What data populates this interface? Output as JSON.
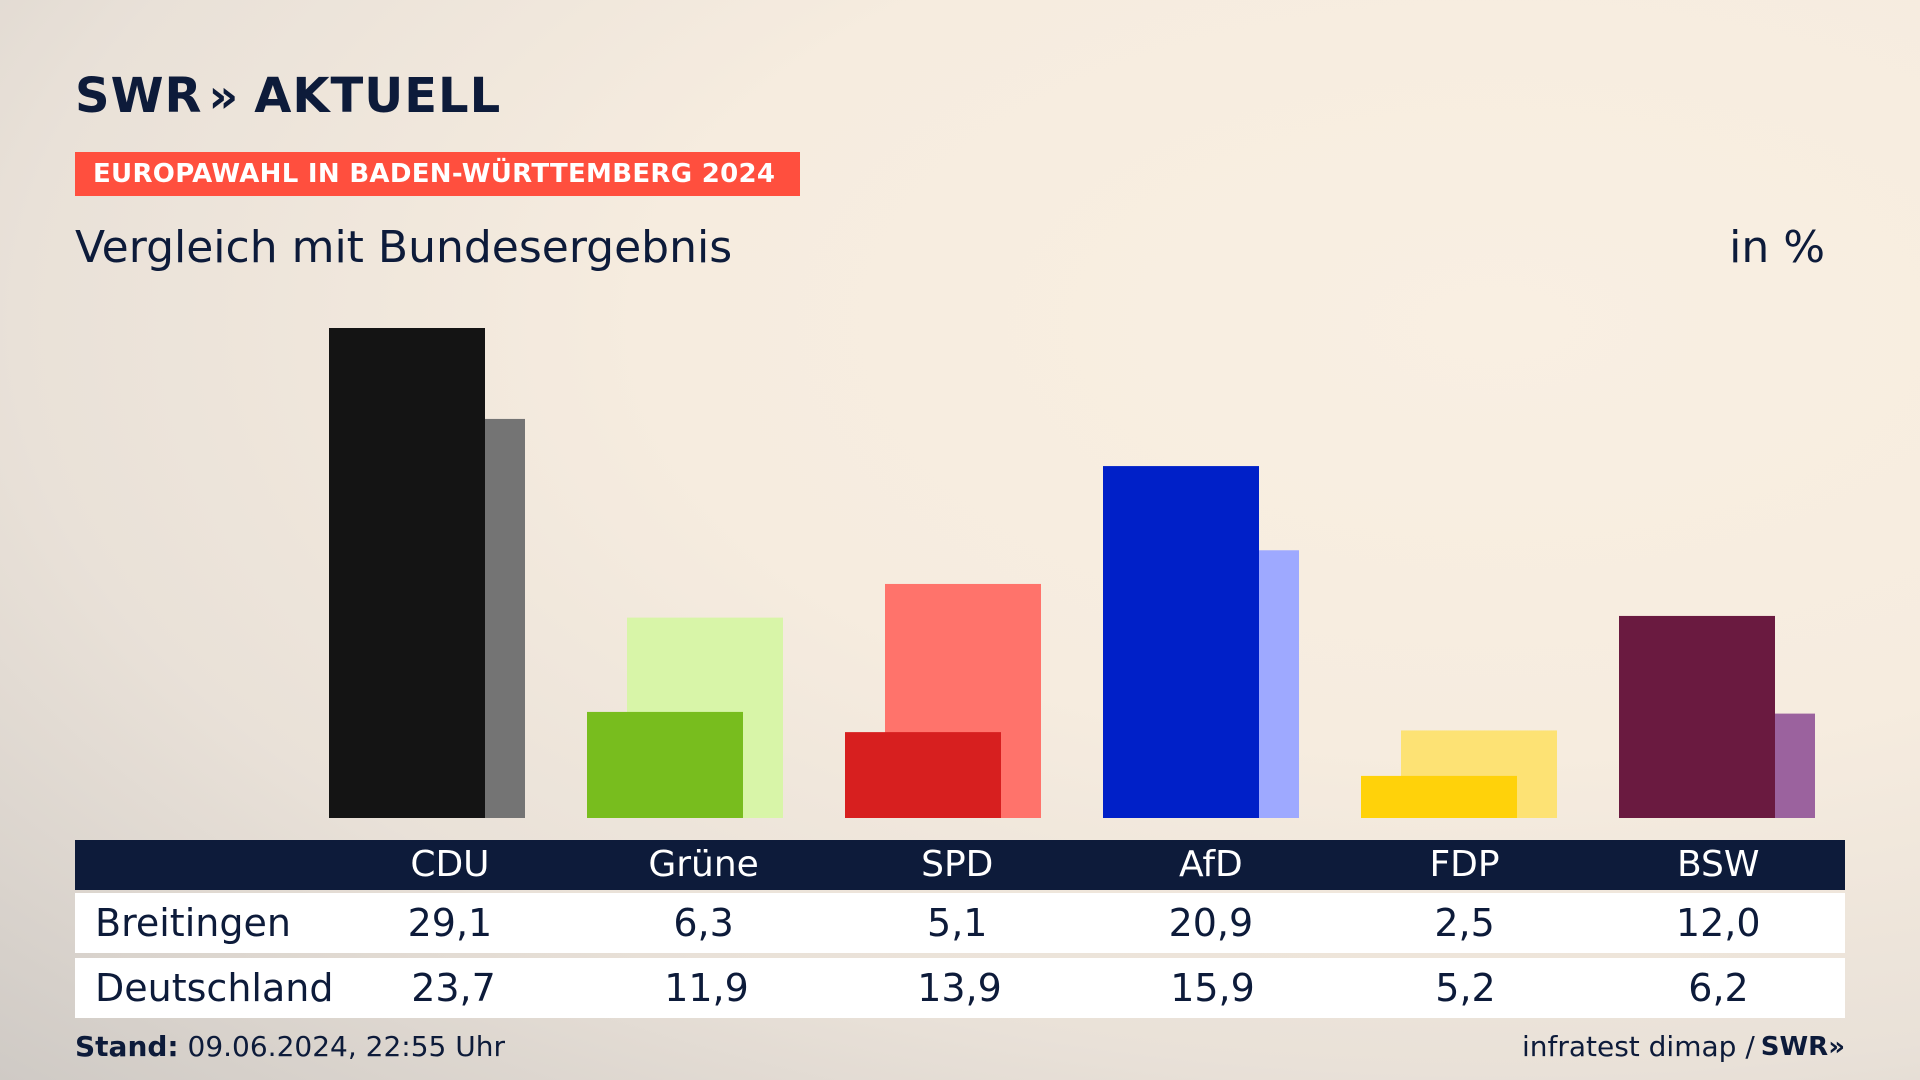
{
  "header": {
    "logo_text": "SWR",
    "logo_chevrons": "»",
    "logo_suffix": "AKTUELL",
    "kicker": "EUROPAWAHL IN BADEN-WÜRTTEMBERG 2024",
    "subtitle": "Vergleich mit Bundesergebnis",
    "unit": "in %"
  },
  "table": {
    "row_labels": [
      "Breitingen",
      "Deutschland"
    ]
  },
  "footer": {
    "stand_label": "Stand:",
    "stand_value": " 09.06.2024, 22:55 Uhr",
    "source": "infratest dimap /",
    "source_logo": "SWR»"
  },
  "chart_data": {
    "type": "bar",
    "categories": [
      "CDU",
      "Grüne",
      "SPD",
      "AfD",
      "FDP",
      "BSW"
    ],
    "series": [
      {
        "name": "Breitingen",
        "values": [
          29.1,
          6.3,
          5.1,
          20.9,
          2.5,
          12.0
        ]
      },
      {
        "name": "Deutschland",
        "values": [
          23.7,
          11.9,
          13.9,
          15.9,
          5.2,
          6.2
        ]
      }
    ],
    "display_values": {
      "Breitingen": [
        "29,1",
        "6,3",
        "5,1",
        "20,9",
        "2,5",
        "12,0"
      ],
      "Deutschland": [
        "23,7",
        "11,9",
        "13,9",
        "15,9",
        "5,2",
        "6,2"
      ]
    },
    "colors": {
      "Breitingen": [
        "#141414",
        "#78bd1e",
        "#d71f1f",
        "#0020c8",
        "#ffd20a",
        "#6a1a40"
      ],
      "Deutschland": [
        "#747474",
        "#d8f5a8",
        "#ff736b",
        "#9ea9ff",
        "#fde274",
        "#9b629e"
      ]
    },
    "title": "Vergleich mit Bundesergebnis",
    "ylabel": "in %",
    "ylim": [
      0,
      29.1
    ],
    "grid": false,
    "legend": "none"
  }
}
